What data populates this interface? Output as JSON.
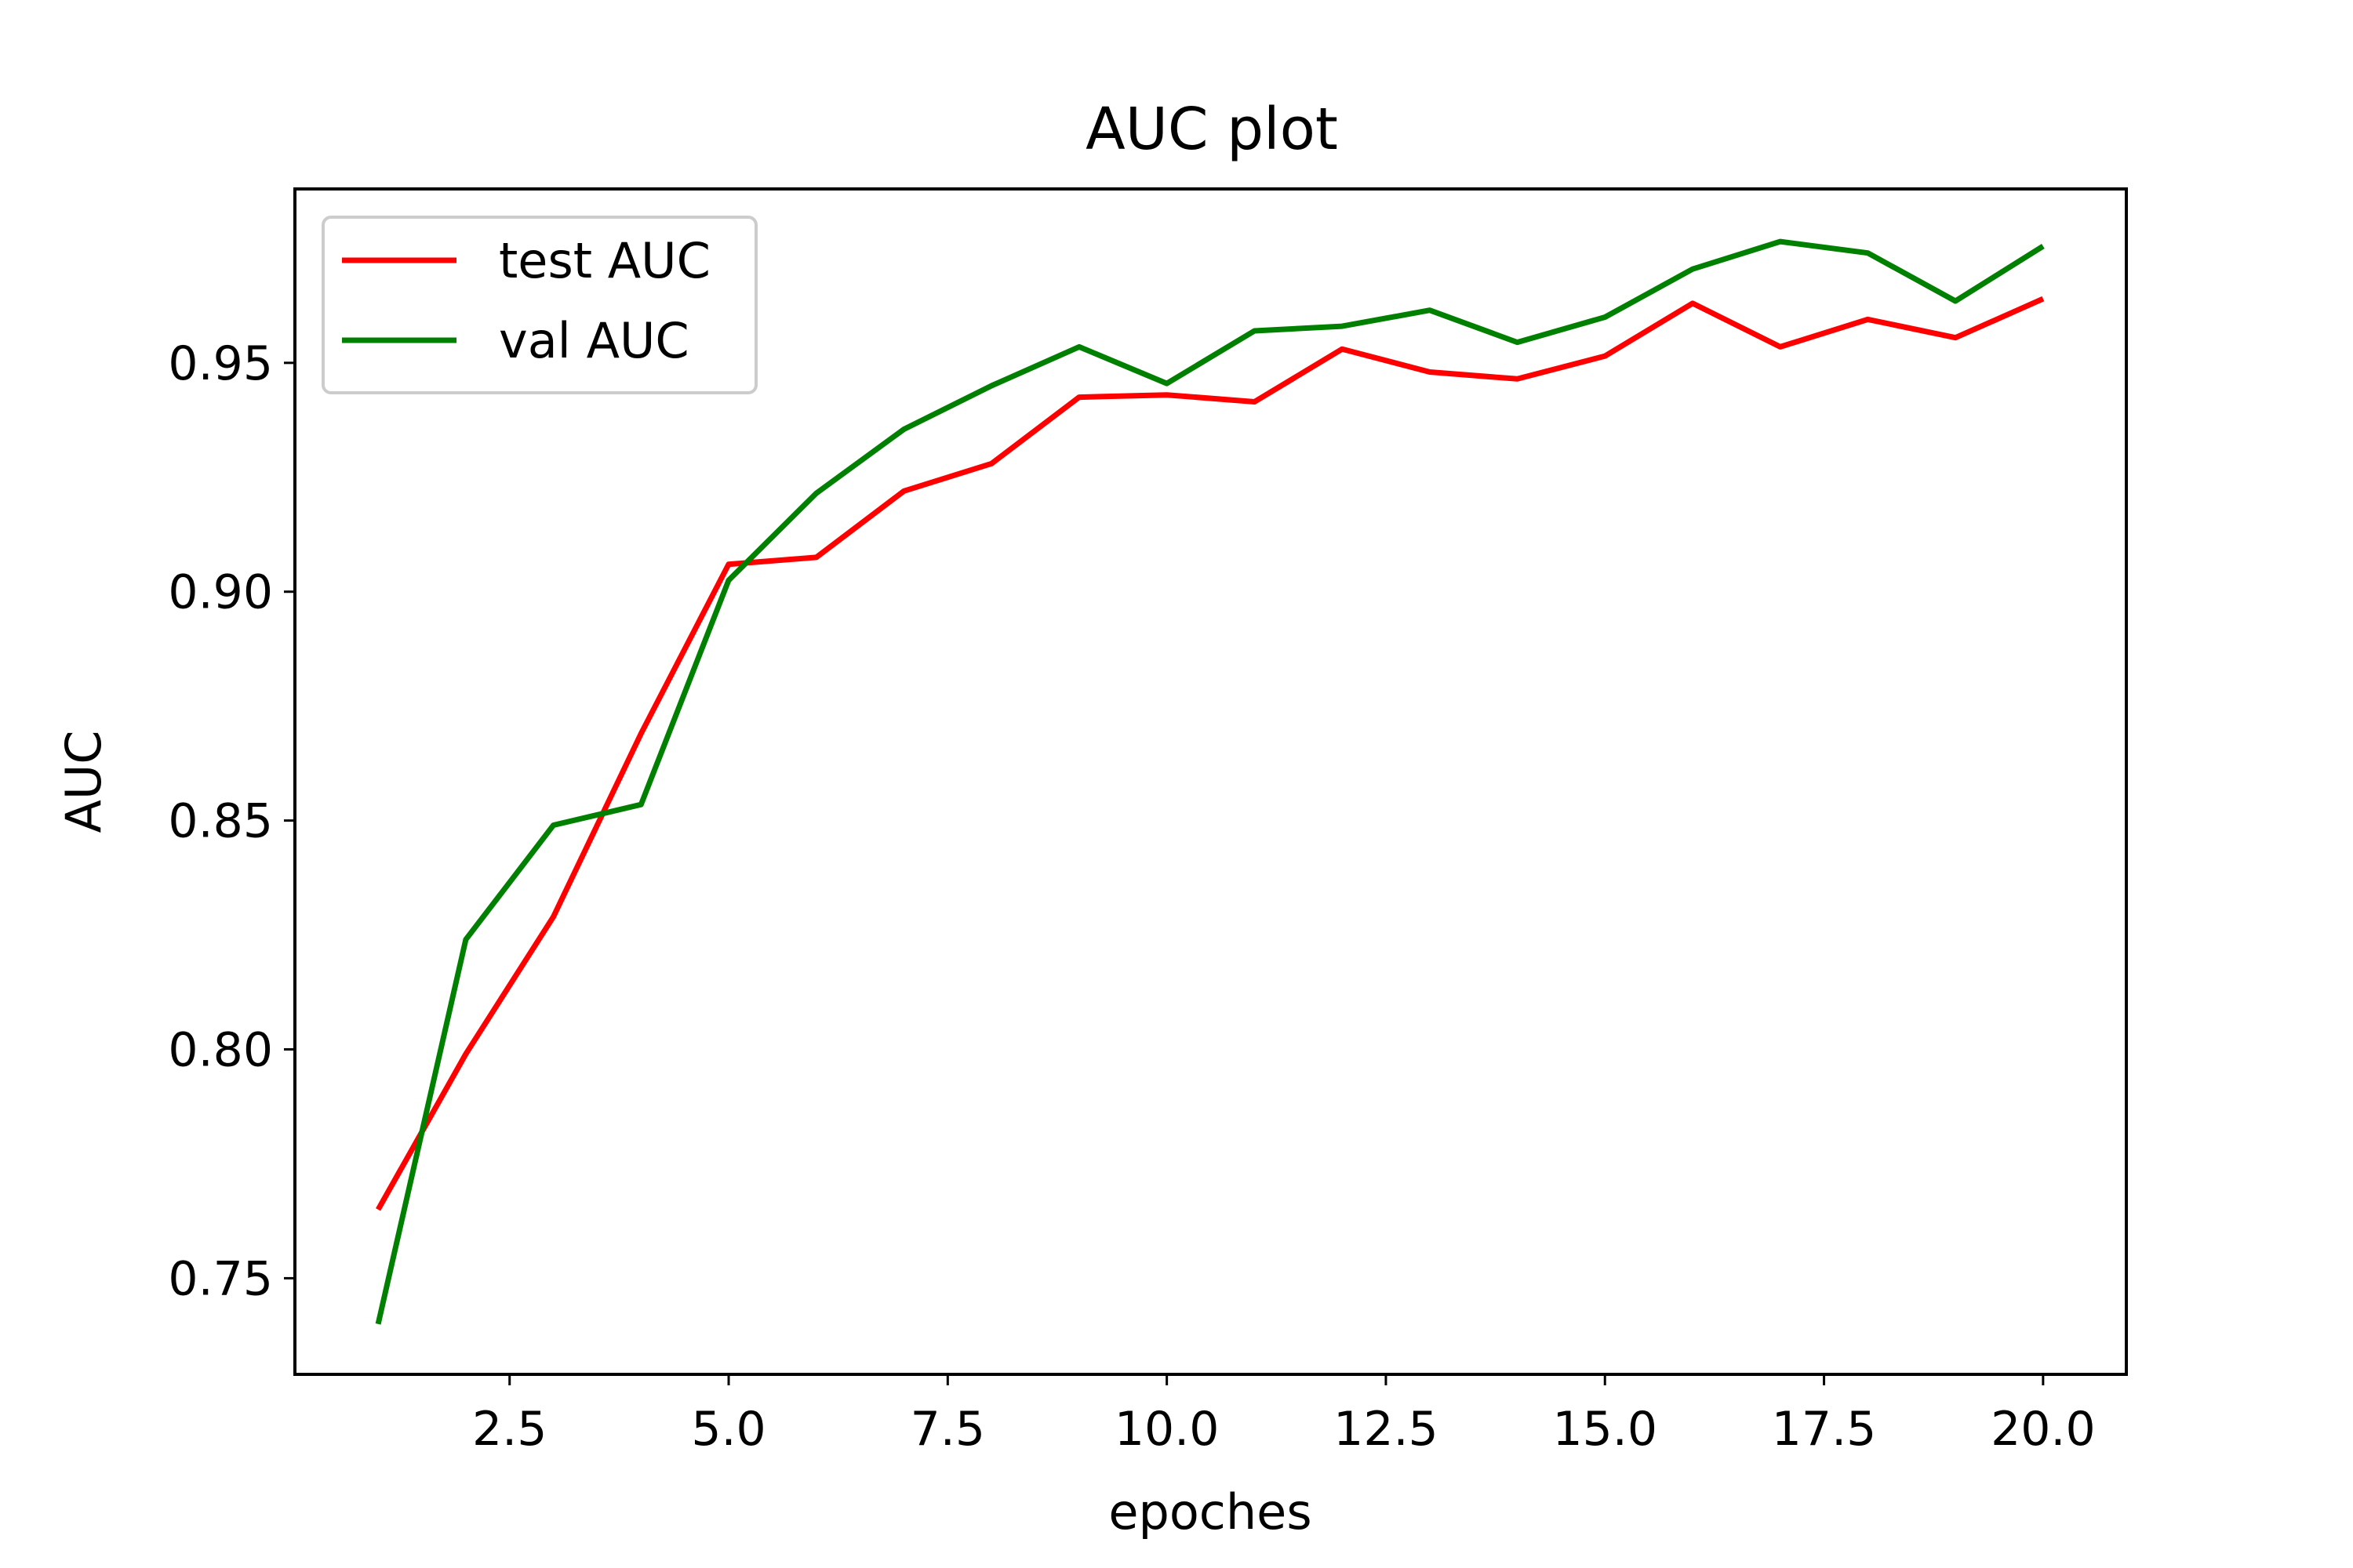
{
  "chart_data": {
    "type": "line",
    "title": "AUC plot",
    "xlabel": "epoches",
    "ylabel": "AUC",
    "x": [
      1,
      2,
      3,
      4,
      5,
      6,
      7,
      8,
      9,
      10,
      11,
      12,
      13,
      14,
      15,
      16,
      17,
      18,
      19,
      20
    ],
    "xlim": [
      0.05,
      20.95
    ],
    "ylim": [
      0.729,
      0.988
    ],
    "xticks": [
      2.5,
      5.0,
      7.5,
      10.0,
      12.5,
      15.0,
      17.5,
      20.0
    ],
    "xtick_labels": [
      "2.5",
      "5.0",
      "7.5",
      "10.0",
      "12.5",
      "15.0",
      "17.5",
      "20.0"
    ],
    "yticks": [
      0.75,
      0.8,
      0.85,
      0.9,
      0.95
    ],
    "ytick_labels": [
      "0.75",
      "0.80",
      "0.85",
      "0.90",
      "0.95"
    ],
    "grid": false,
    "legend_position": "top-left",
    "series": [
      {
        "name": "test AUC",
        "color": "#ff0000",
        "values": [
          0.765,
          0.799,
          0.829,
          0.869,
          0.906,
          0.9075,
          0.922,
          0.928,
          0.9425,
          0.943,
          0.9415,
          0.953,
          0.948,
          0.9465,
          0.9515,
          0.963,
          0.9535,
          0.9595,
          0.9555,
          0.964
        ]
      },
      {
        "name": "val AUC",
        "color": "#008000",
        "values": [
          0.74,
          0.824,
          0.849,
          0.8535,
          0.9025,
          0.9215,
          0.9355,
          0.945,
          0.9535,
          0.9455,
          0.957,
          0.958,
          0.9615,
          0.9545,
          0.96,
          0.9705,
          0.9765,
          0.974,
          0.9635,
          0.9755
        ]
      }
    ]
  }
}
